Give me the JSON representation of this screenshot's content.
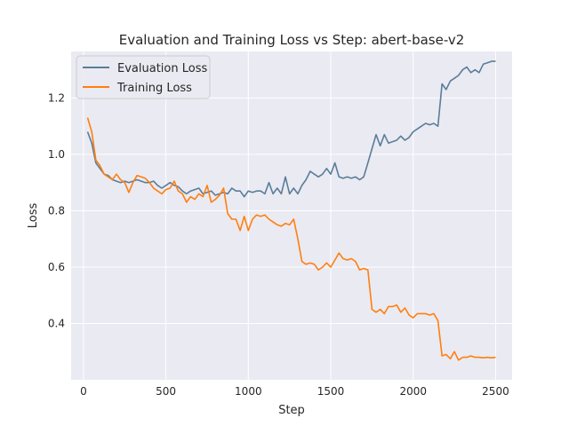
{
  "chart_data": {
    "type": "line",
    "title": "Evaluation and Training Loss vs Step: abert-base-v2",
    "xlabel": "Step",
    "ylabel": "Loss",
    "xlim": [
      -75,
      2600
    ],
    "ylim": [
      0.2,
      1.365
    ],
    "xticks": [
      0,
      500,
      1000,
      1500,
      2000,
      2500
    ],
    "yticks": [
      0.4,
      0.6,
      0.8,
      1.0,
      1.2
    ],
    "xtick_labels": [
      "0",
      "500",
      "1000",
      "1500",
      "2000",
      "2500"
    ],
    "ytick_labels": [
      "0.4",
      "0.6",
      "0.8",
      "1.0",
      "1.2"
    ],
    "grid": true,
    "legend_position": "top-left",
    "background": "#eaeaf2",
    "series": [
      {
        "name": "Evaluation Loss",
        "color": "#5a7d9a",
        "x": [
          25,
          50,
          75,
          100,
          125,
          150,
          175,
          200,
          225,
          250,
          275,
          300,
          325,
          350,
          375,
          400,
          425,
          450,
          475,
          500,
          525,
          550,
          575,
          600,
          625,
          650,
          675,
          700,
          725,
          750,
          775,
          800,
          825,
          850,
          875,
          900,
          925,
          950,
          975,
          1000,
          1025,
          1050,
          1075,
          1100,
          1125,
          1150,
          1175,
          1200,
          1225,
          1250,
          1275,
          1300,
          1325,
          1350,
          1375,
          1400,
          1425,
          1450,
          1475,
          1500,
          1525,
          1550,
          1575,
          1600,
          1625,
          1650,
          1675,
          1700,
          1725,
          1750,
          1775,
          1800,
          1825,
          1850,
          1875,
          1900,
          1925,
          1950,
          1975,
          2000,
          2025,
          2050,
          2075,
          2100,
          2125,
          2150,
          2175,
          2200,
          2225,
          2250,
          2275,
          2300,
          2325,
          2350,
          2375,
          2400,
          2425,
          2450,
          2475,
          2500
        ],
        "values": [
          1.08,
          1.04,
          0.97,
          0.95,
          0.93,
          0.925,
          0.91,
          0.905,
          0.9,
          0.905,
          0.9,
          0.905,
          0.91,
          0.905,
          0.9,
          0.9,
          0.905,
          0.89,
          0.88,
          0.89,
          0.9,
          0.89,
          0.885,
          0.87,
          0.86,
          0.87,
          0.875,
          0.88,
          0.86,
          0.865,
          0.87,
          0.855,
          0.86,
          0.865,
          0.86,
          0.88,
          0.87,
          0.87,
          0.85,
          0.87,
          0.865,
          0.87,
          0.87,
          0.86,
          0.9,
          0.86,
          0.88,
          0.86,
          0.92,
          0.86,
          0.88,
          0.86,
          0.89,
          0.91,
          0.94,
          0.93,
          0.92,
          0.93,
          0.95,
          0.93,
          0.97,
          0.92,
          0.915,
          0.92,
          0.915,
          0.92,
          0.91,
          0.92,
          0.97,
          1.02,
          1.07,
          1.03,
          1.07,
          1.04,
          1.045,
          1.05,
          1.065,
          1.05,
          1.06,
          1.08,
          1.09,
          1.1,
          1.11,
          1.105,
          1.11,
          1.1,
          1.25,
          1.23,
          1.26,
          1.27,
          1.28,
          1.3,
          1.31,
          1.29,
          1.3,
          1.29,
          1.32,
          1.325,
          1.33,
          1.33
        ]
      },
      {
        "name": "Training Loss",
        "color": "#ff7f0e",
        "x": [
          25,
          50,
          75,
          100,
          125,
          150,
          175,
          200,
          225,
          250,
          275,
          300,
          325,
          350,
          375,
          400,
          425,
          450,
          475,
          500,
          525,
          550,
          575,
          600,
          625,
          650,
          675,
          700,
          725,
          750,
          775,
          800,
          825,
          850,
          875,
          900,
          925,
          950,
          975,
          1000,
          1025,
          1050,
          1075,
          1100,
          1125,
          1150,
          1175,
          1200,
          1225,
          1250,
          1275,
          1300,
          1325,
          1350,
          1375,
          1400,
          1425,
          1450,
          1475,
          1500,
          1525,
          1550,
          1575,
          1600,
          1625,
          1650,
          1675,
          1700,
          1725,
          1750,
          1775,
          1800,
          1825,
          1850,
          1875,
          1900,
          1925,
          1950,
          1975,
          2000,
          2025,
          2050,
          2075,
          2100,
          2125,
          2150,
          2175,
          2200,
          2225,
          2250,
          2275,
          2300,
          2325,
          2350,
          2375,
          2400,
          2425,
          2450,
          2475,
          2500
        ],
        "values": [
          1.13,
          1.08,
          0.98,
          0.96,
          0.93,
          0.92,
          0.91,
          0.93,
          0.91,
          0.9,
          0.865,
          0.9,
          0.925,
          0.92,
          0.915,
          0.9,
          0.88,
          0.87,
          0.86,
          0.875,
          0.88,
          0.905,
          0.87,
          0.86,
          0.83,
          0.85,
          0.84,
          0.86,
          0.85,
          0.89,
          0.83,
          0.84,
          0.855,
          0.88,
          0.79,
          0.77,
          0.77,
          0.73,
          0.78,
          0.73,
          0.77,
          0.785,
          0.78,
          0.785,
          0.77,
          0.76,
          0.75,
          0.745,
          0.755,
          0.75,
          0.77,
          0.7,
          0.62,
          0.61,
          0.615,
          0.61,
          0.59,
          0.6,
          0.615,
          0.6,
          0.625,
          0.65,
          0.63,
          0.625,
          0.63,
          0.62,
          0.59,
          0.595,
          0.59,
          0.45,
          0.44,
          0.45,
          0.435,
          0.46,
          0.46,
          0.465,
          0.44,
          0.455,
          0.43,
          0.42,
          0.435,
          0.435,
          0.435,
          0.43,
          0.435,
          0.41,
          0.285,
          0.29,
          0.275,
          0.3,
          0.27,
          0.28,
          0.28,
          0.285,
          0.28,
          0.28,
          0.278,
          0.28,
          0.278,
          0.28
        ]
      }
    ]
  }
}
